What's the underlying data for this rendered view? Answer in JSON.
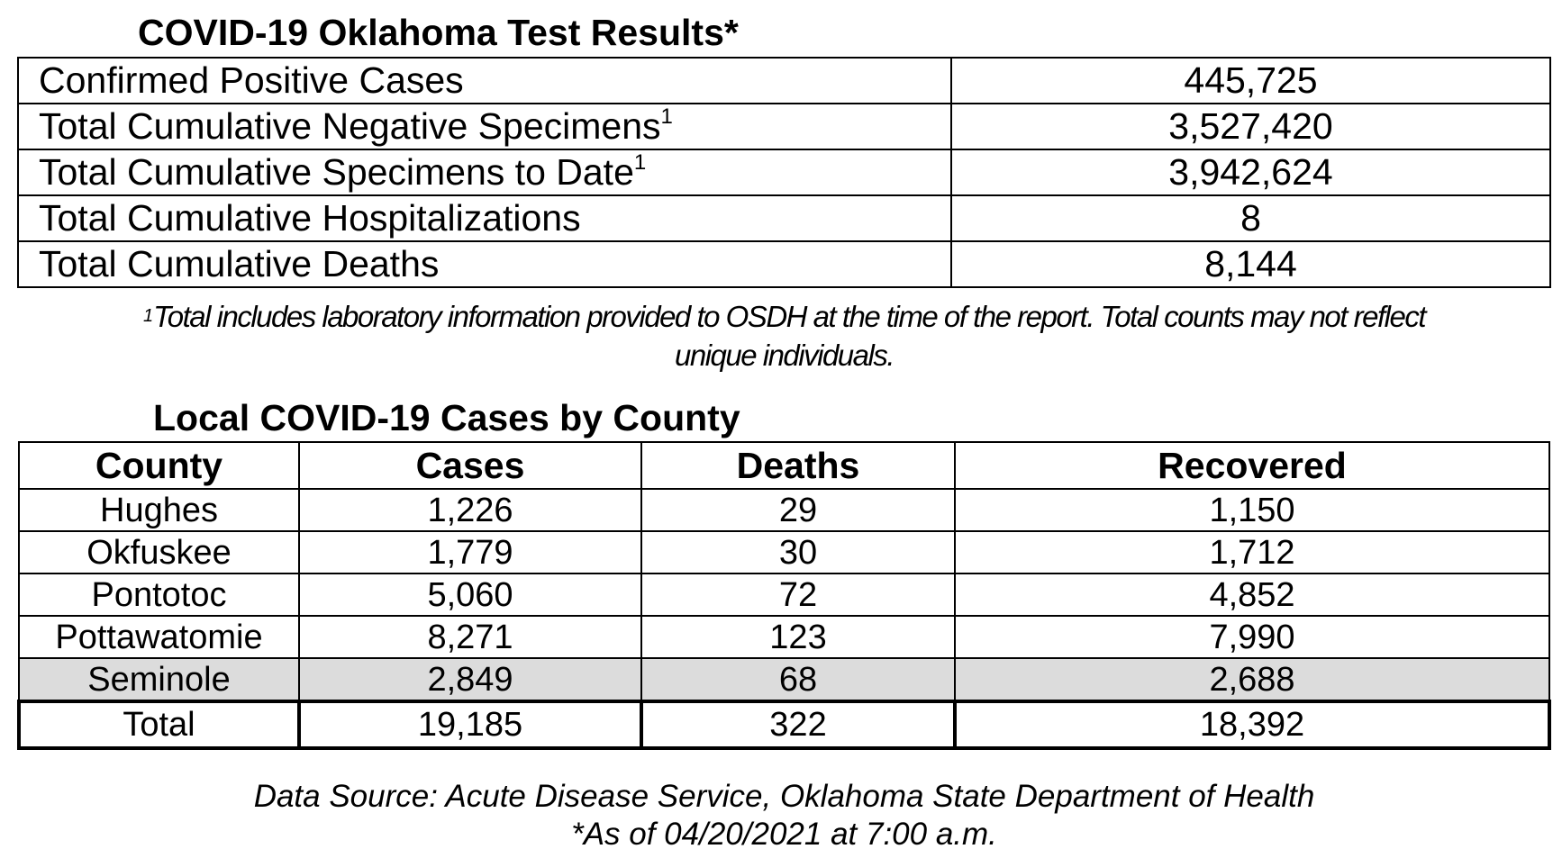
{
  "tests": {
    "title": "COVID-19 Oklahoma Test Results*",
    "rows": [
      {
        "label": "Confirmed Positive Cases",
        "sup": "",
        "value": "445,725"
      },
      {
        "label": "Total Cumulative Negative Specimens",
        "sup": "1",
        "value": "3,527,420"
      },
      {
        "label": "Total Cumulative Specimens to Date",
        "sup": "1",
        "value": "3,942,624"
      },
      {
        "label": "Total Cumulative Hospitalizations",
        "sup": "",
        "value": "8"
      },
      {
        "label": "Total Cumulative Deaths",
        "sup": "",
        "value": "8,144"
      }
    ],
    "footnote_mark": "1",
    "footnote_line1": "Total includes laboratory information provided to OSDH at the time of the report. Total counts may not reflect",
    "footnote_line2": "unique individuals."
  },
  "county": {
    "title": "Local COVID-19 Cases by County",
    "headers": [
      "County",
      "Cases",
      "Deaths",
      "Recovered"
    ],
    "rows": [
      [
        "Hughes",
        "1,226",
        "29",
        "1,150"
      ],
      [
        "Okfuskee",
        "1,779",
        "30",
        "1,712"
      ],
      [
        "Pontotoc",
        "5,060",
        "72",
        "4,852"
      ],
      [
        "Pottawatomie",
        "8,271",
        "123",
        "7,990"
      ],
      [
        "Seminole",
        "2,849",
        "68",
        "2,688"
      ]
    ],
    "total": [
      "Total",
      "19,185",
      "322",
      "18,392"
    ],
    "shaded_row_color": "#dcdcdc"
  },
  "source": {
    "line1": "Data Source: Acute Disease Service, Oklahoma State Department of Health",
    "line2": "*As of 04/20/2021 at 7:00 a.m."
  }
}
